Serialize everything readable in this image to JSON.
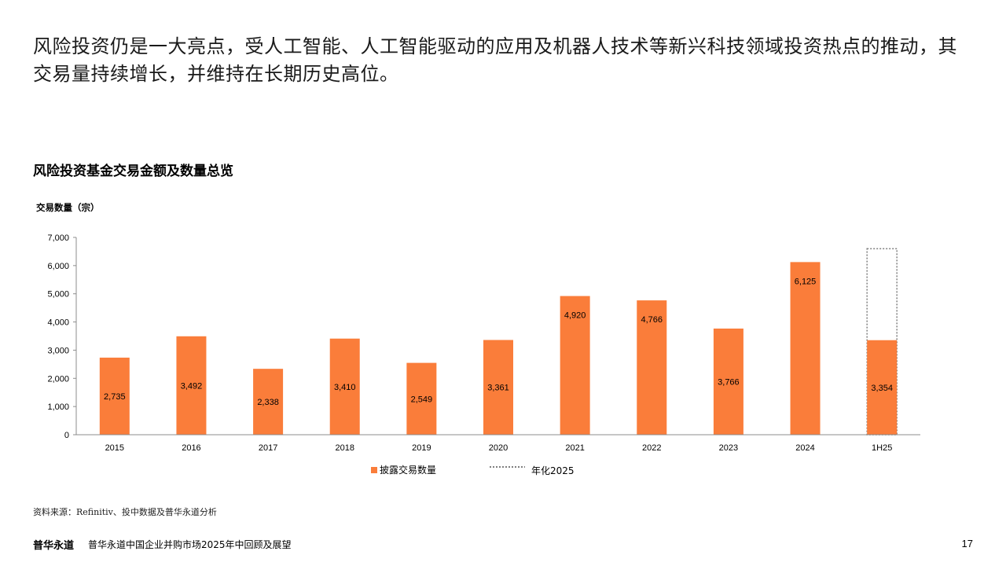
{
  "headline": "风险投资仍是一大亮点，受人工智能、人工智能驱动的应用及机器人技术等新兴科技领域投资热点的推动，其交易量持续增长，并维持在长期历史高位。",
  "chart_data": {
    "type": "bar",
    "title": "风险投资基金交易金额及数量总览",
    "ylabel": "交易数量（宗）",
    "xlabel": "",
    "ylim": [
      0,
      7000
    ],
    "yticks": [
      0,
      1000,
      2000,
      3000,
      4000,
      5000,
      6000,
      7000
    ],
    "ytick_labels": [
      "0",
      "1,000",
      "2,000",
      "3,000",
      "4,000",
      "5,000",
      "6,000",
      "7,000"
    ],
    "categories": [
      "2015",
      "2016",
      "2017",
      "2018",
      "2019",
      "2020",
      "2021",
      "2022",
      "2023",
      "2024",
      "1H25"
    ],
    "series": [
      {
        "name": "披露交易数量",
        "color": "#FA7D3A",
        "values": [
          2735,
          3492,
          2338,
          3410,
          2549,
          3361,
          4920,
          4766,
          3766,
          6125,
          3354
        ],
        "value_labels": [
          "2,735",
          "3,492",
          "2,338",
          "3,410",
          "2,549",
          "3,361",
          "4,920",
          "4,766",
          "3,766",
          "6,125",
          "3,354"
        ]
      },
      {
        "name": "年化2025",
        "style": "dotted-outline",
        "color": "#7f7f7f",
        "category": "1H25",
        "value": 6600
      }
    ],
    "legend_position": "bottom-center",
    "grid": false
  },
  "source": "资料来源：Refinitiv、投中数据及普华永道分析",
  "footer": {
    "brand": "普华永道",
    "report_title": "普华永道中国企业并购市场2025年中回顾及展望",
    "page_number": "17"
  }
}
